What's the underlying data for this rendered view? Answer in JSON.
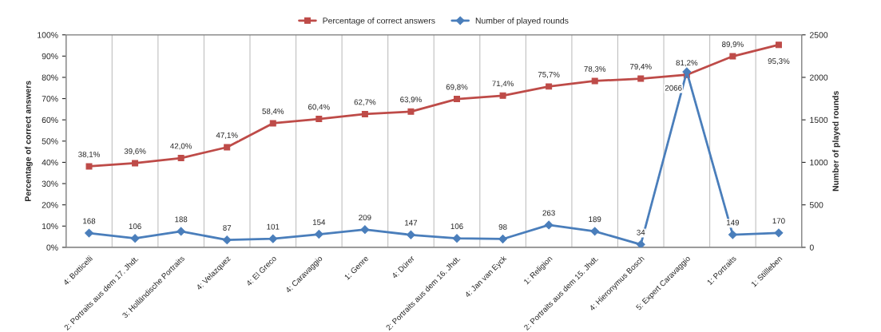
{
  "chart_data": {
    "type": "line",
    "categories": [
      "4: Botticelli",
      "2: Portraits aus dem 17. Jhdt.",
      "3: Holländische Portraits",
      "4: Velazquez",
      "4: El Greco",
      "4: Caravaggio",
      "1: Genre",
      "4: Dürer",
      "2: Portraits aus dem 16. Jhdt.",
      "4: Jan van Eyck",
      "1: Religion",
      "2: Portraits aus dem 15. Jhdt.",
      "4: Hieronymus Bosch",
      "5: Expert Caravaggio",
      "1: Portraits",
      "1: Stillleben"
    ],
    "series": [
      {
        "name": "Percentage of correct answers",
        "color": "#be4b48",
        "marker": "square",
        "values": [
          38.1,
          39.6,
          42.0,
          47.1,
          58.4,
          60.4,
          62.7,
          63.9,
          69.8,
          71.4,
          75.7,
          78.3,
          79.4,
          81.2,
          89.9,
          95.3
        ],
        "value_labels": [
          "38,1%",
          "39,6%",
          "42,0%",
          "47,1%",
          "58,4%",
          "60,4%",
          "62,7%",
          "63,9%",
          "69,8%",
          "71,4%",
          "75,7%",
          "78,3%",
          "79,4%",
          "81,2%",
          "89,9%",
          "95,3%"
        ]
      },
      {
        "name": "Number of played rounds",
        "color": "#4a7ebb",
        "marker": "diamond",
        "axis": "y2",
        "values": [
          168,
          106,
          188,
          87,
          101,
          154,
          209,
          147,
          106,
          98,
          263,
          189,
          34,
          2066,
          149,
          170
        ],
        "value_labels": [
          "168",
          "106",
          "188",
          "87",
          "101",
          "154",
          "209",
          "147",
          "106",
          "98",
          "263",
          "189",
          "34",
          "2066",
          "149",
          "170"
        ]
      }
    ],
    "ylabel": "Percentage of correct answers",
    "y2label": "Number of played rounds",
    "ylim": [
      0,
      100
    ],
    "yticks": [
      {
        "value": 0,
        "label": "0%"
      },
      {
        "value": 10,
        "label": "10%"
      },
      {
        "value": 20,
        "label": "20%"
      },
      {
        "value": 30,
        "label": "30%"
      },
      {
        "value": 40,
        "label": "40%"
      },
      {
        "value": 50,
        "label": "50%"
      },
      {
        "value": 60,
        "label": "60%"
      },
      {
        "value": 70,
        "label": "70%"
      },
      {
        "value": 80,
        "label": "80%"
      },
      {
        "value": 90,
        "label": "90%"
      },
      {
        "value": 100,
        "label": "100%"
      }
    ],
    "y2lim": [
      0,
      2500
    ],
    "y2ticks": [
      0,
      500,
      1000,
      1500,
      2000,
      2500
    ],
    "grid": "x",
    "legend": "top",
    "line_style": "solid"
  }
}
